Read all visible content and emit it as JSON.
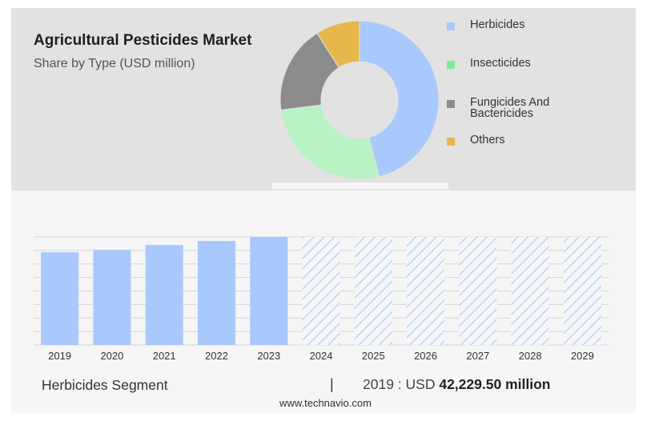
{
  "header": {
    "title": "Agricultural Pesticides Market",
    "subtitle": "Share by Type (USD million)"
  },
  "legend": [
    {
      "label": "Herbicides",
      "color": "#a9c8fb"
    },
    {
      "label": "Insecticides",
      "color": "#7ee89a"
    },
    {
      "label": "Fungicides And Bactericides",
      "color": "#8c8c8c"
    },
    {
      "label": "Others",
      "color": "#e6b84c"
    }
  ],
  "footer": {
    "segment": "Herbicides Segment",
    "divider": "|",
    "value_prefix": "2019 : USD",
    "value_bold": "42,229.50 million"
  },
  "source": "www.technavio.com",
  "chart_data": [
    {
      "type": "pie",
      "title": "",
      "labels": [
        "Herbicides",
        "Insecticides",
        "Fungicides And Bactericides",
        "Others"
      ],
      "values": [
        46,
        27,
        18,
        9
      ],
      "colors": [
        "#a9c8fb",
        "#b9f3c3",
        "#8c8c8c",
        "#e6b84c"
      ]
    },
    {
      "type": "bar",
      "title": "",
      "categories": [
        "2019",
        "2020",
        "2021",
        "2022",
        "2023",
        "2024",
        "2025",
        "2026",
        "2027",
        "2028",
        "2029"
      ],
      "values": [
        115,
        118,
        124,
        129,
        134,
        null,
        null,
        null,
        null,
        null,
        null
      ],
      "forecast_categories": [
        "2024",
        "2025",
        "2026",
        "2027",
        "2028",
        "2029"
      ],
      "ylim": [
        0,
        134
      ],
      "grid": true,
      "bar_color": "#a9c8fb",
      "forecast_color": "#a9c8fb"
    }
  ]
}
